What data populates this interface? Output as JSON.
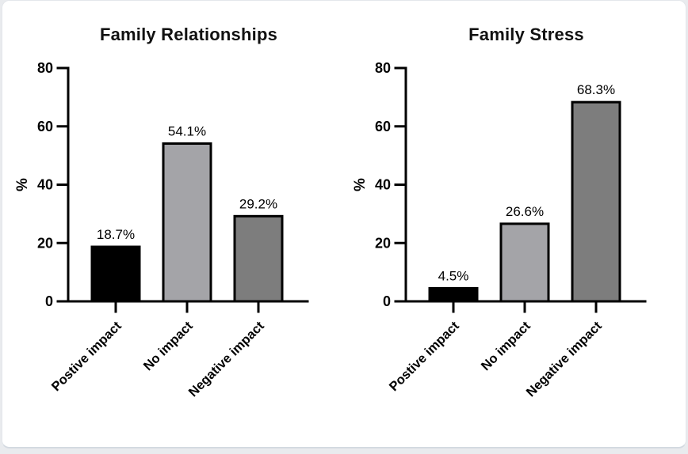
{
  "palette": {
    "page_background": "#e9ebee",
    "card_background": "#ffffff",
    "card_border": "#e4e7eb",
    "axis_color": "#000000",
    "bar_outline_color": "#000000"
  },
  "chart_data": [
    {
      "type": "bar",
      "title": "Family Relationships",
      "xlabel": "",
      "ylabel": "%",
      "ylim": [
        0,
        80
      ],
      "yticks": [
        0,
        20,
        40,
        60,
        80
      ],
      "grid": false,
      "legend": "none",
      "categories": [
        "Postive impact",
        "No impact",
        "Negative impact"
      ],
      "values": [
        18.7,
        54.1,
        29.2
      ],
      "value_labels": [
        "18.7%",
        "54.1%",
        "29.2%"
      ],
      "bar_colors": [
        "#000000",
        "#a4a4a8",
        "#7d7d7d"
      ]
    },
    {
      "type": "bar",
      "title": "Family Stress",
      "xlabel": "",
      "ylabel": "%",
      "ylim": [
        0,
        80
      ],
      "yticks": [
        0,
        20,
        40,
        60,
        80
      ],
      "grid": false,
      "legend": "none",
      "categories": [
        "Postive impact",
        "No impact",
        "Negative impact"
      ],
      "values": [
        4.5,
        26.6,
        68.3
      ],
      "value_labels": [
        "4.5%",
        "26.6%",
        "68.3%"
      ],
      "bar_colors": [
        "#000000",
        "#a4a4a8",
        "#7d7d7d"
      ]
    }
  ]
}
